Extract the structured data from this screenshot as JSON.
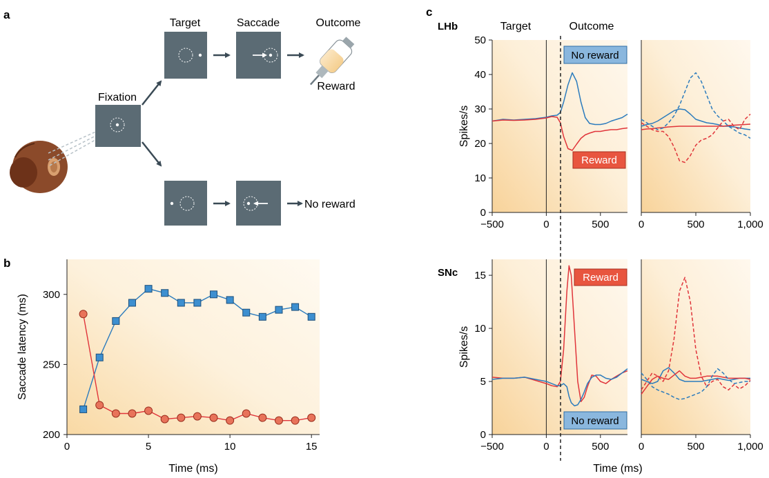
{
  "panel_labels": {
    "a": "a",
    "b": "b",
    "c": "c"
  },
  "diagram": {
    "fixation_label": "Fixation",
    "target_label": "Target",
    "saccade_label": "Saccade",
    "outcome_label": "Outcome",
    "reward_label": "Reward",
    "no_reward_label": "No reward"
  },
  "chart_b": {
    "ylabel": "Saccade latency (ms)",
    "xlabel": "Time (ms)",
    "xticks": [
      "0",
      "5",
      "10",
      "15"
    ],
    "yticks": [
      "200",
      "250",
      "300"
    ]
  },
  "panel_c": {
    "header_target": "Target",
    "header_outcome": "Outcome",
    "row_lhb": "LHb",
    "row_snc": "SNc",
    "ylabel": "Spikes/s",
    "xlabel": "Time (ms)",
    "left_xticks": [
      "−500",
      "0",
      "500"
    ],
    "right_xticks": [
      "0",
      "500",
      "1,000"
    ],
    "lhb_yticks": [
      "0",
      "10",
      "20",
      "30",
      "40",
      "50"
    ],
    "snc_yticks": [
      "0",
      "5",
      "10",
      "15"
    ],
    "lhb_no_reward": "No reward",
    "lhb_reward": "Reward",
    "snc_reward": "Reward",
    "snc_no_reward": "No reward"
  },
  "colors": {
    "blue": "#2b7bbd",
    "red": "#e0343a",
    "blue_marker": "#3d8fd0",
    "red_marker": "#e8735a",
    "screen": "#5b6b74",
    "blue_box": "#8ab7de",
    "red_box": "#e8553f"
  },
  "chart_data": [
    {
      "type": "line",
      "xlabel": "Time (ms)",
      "ylabel": "Saccade latency (ms)",
      "xlim": [
        0,
        15.5
      ],
      "ylim": [
        200,
        325
      ],
      "x": [
        1,
        2,
        3,
        4,
        5,
        6,
        7,
        8,
        9,
        10,
        11,
        12,
        13,
        14,
        15
      ],
      "series": [
        {
          "values": [
            218,
            255,
            281,
            294,
            304,
            301,
            294,
            294,
            300,
            296,
            287,
            284,
            289,
            291,
            284
          ]
        },
        {
          "values": [
            286,
            221,
            215,
            215,
            217,
            211,
            212,
            213,
            212,
            210,
            215,
            212,
            210,
            210,
            212
          ]
        }
      ]
    },
    {
      "type": "line",
      "title": "LHb",
      "ylabel": "Spikes/s",
      "xlim": [
        -500,
        750
      ],
      "ylim": [
        0,
        50
      ],
      "series": [
        {
          "name": "No reward",
          "x": [
            -500,
            -400,
            -300,
            -200,
            -100,
            0,
            50,
            100,
            130,
            160,
            200,
            240,
            280,
            320,
            360,
            400,
            450,
            500,
            550,
            600,
            650,
            700,
            750
          ],
          "values": [
            26.5,
            27,
            26.8,
            27,
            27.2,
            27.6,
            28,
            28.2,
            29,
            32,
            37,
            40.5,
            38,
            32,
            27.5,
            25.8,
            25.5,
            25.5,
            25.8,
            26.5,
            27,
            27.5,
            28.5
          ]
        },
        {
          "name": "Reward",
          "x": [
            -500,
            -400,
            -300,
            -200,
            -100,
            0,
            50,
            100,
            130,
            160,
            200,
            240,
            280,
            320,
            360,
            400,
            450,
            500,
            550,
            600,
            650,
            700,
            750
          ],
          "values": [
            26.5,
            26.8,
            26.7,
            26.8,
            27,
            27.4,
            27.8,
            27.6,
            26,
            22,
            18.5,
            18,
            19.8,
            21.5,
            22.5,
            23,
            23.5,
            23.5,
            23.8,
            24,
            24,
            24.3,
            24.5
          ]
        }
      ]
    },
    {
      "type": "line",
      "ylabel": "Spikes/s",
      "xlim": [
        0,
        1000
      ],
      "ylim": [
        0,
        50
      ],
      "series": [
        {
          "x": [
            0,
            50,
            100,
            150,
            200,
            250,
            300,
            350,
            400,
            450,
            500,
            550,
            600,
            650,
            700,
            750,
            800,
            850,
            900,
            950,
            1000
          ],
          "values": [
            25,
            25.5,
            25.8,
            26.5,
            27.5,
            28.5,
            29.5,
            30,
            29.8,
            28.5,
            27,
            26.5,
            26,
            25.8,
            25.5,
            25,
            25,
            24.8,
            24.5,
            24.2,
            24
          ]
        },
        {
          "x": [
            0,
            50,
            100,
            150,
            200,
            250,
            300,
            350,
            400,
            450,
            500,
            550,
            600,
            650,
            700,
            750,
            800,
            850,
            900,
            950,
            1000
          ],
          "values": [
            24,
            24.2,
            24.3,
            24.5,
            24.6,
            24.8,
            24.9,
            25,
            25,
            25,
            25,
            25,
            25,
            25,
            25,
            25,
            25.2,
            25.3,
            25.4,
            25.5,
            25.6
          ]
        },
        {
          "x": [
            0,
            50,
            100,
            150,
            200,
            250,
            300,
            350,
            400,
            450,
            500,
            550,
            600,
            650,
            700,
            750,
            800,
            850,
            900,
            950,
            1000
          ],
          "values": [
            27,
            26,
            25,
            24,
            24.5,
            26,
            28,
            31,
            35,
            39,
            40.5,
            38,
            34,
            30,
            28,
            26.5,
            25,
            24,
            23,
            22.5,
            21.5
          ]
        },
        {
          "x": [
            0,
            50,
            100,
            150,
            200,
            250,
            300,
            350,
            400,
            450,
            500,
            550,
            600,
            650,
            700,
            750,
            800,
            850,
            900,
            950,
            1000
          ],
          "values": [
            26,
            25,
            24,
            23.5,
            23.5,
            22,
            19,
            15,
            14.5,
            16.5,
            19.5,
            21,
            21.5,
            22.5,
            24.5,
            26.5,
            27,
            25,
            24,
            27,
            28.5
          ]
        }
      ]
    },
    {
      "type": "line",
      "title": "SNc",
      "xlabel": "Time (ms)",
      "ylabel": "Spikes/s",
      "xlim": [
        -500,
        750
      ],
      "ylim": [
        0,
        16.5
      ],
      "series": [
        {
          "name": "Reward",
          "x": [
            -500,
            -400,
            -300,
            -200,
            -100,
            0,
            50,
            100,
            130,
            160,
            190,
            210,
            230,
            260,
            290,
            320,
            350,
            380,
            420,
            460,
            500,
            550,
            600,
            650,
            700,
            750
          ],
          "values": [
            5.4,
            5.3,
            5.3,
            5.4,
            5.1,
            4.8,
            4.6,
            4.5,
            5,
            8,
            13.5,
            15.9,
            15,
            10,
            5,
            3.1,
            3.5,
            4.5,
            5.6,
            5.5,
            5,
            4.8,
            5.2,
            5.5,
            5.8,
            6
          ]
        },
        {
          "name": "No reward",
          "x": [
            -500,
            -400,
            -300,
            -200,
            -100,
            0,
            50,
            100,
            130,
            160,
            190,
            210,
            230,
            260,
            290,
            320,
            350,
            380,
            420,
            460,
            500,
            550,
            600,
            650,
            700,
            750
          ],
          "values": [
            5.2,
            5.3,
            5.3,
            5.4,
            5.2,
            5,
            4.8,
            4.6,
            4.6,
            4.8,
            4.5,
            3.6,
            3,
            2.7,
            2.8,
            3.3,
            4,
            4.8,
            5.4,
            5.6,
            5.6,
            5.3,
            5.2,
            5.4,
            5.8,
            6.2
          ]
        }
      ]
    },
    {
      "type": "line",
      "xlabel": "Time (ms)",
      "xlim": [
        0,
        1000
      ],
      "ylim": [
        0,
        16.5
      ],
      "series": [
        {
          "x": [
            0,
            50,
            100,
            150,
            200,
            250,
            300,
            350,
            400,
            450,
            500,
            550,
            600,
            650,
            700,
            750,
            800,
            850,
            900,
            950,
            1000
          ],
          "values": [
            5.2,
            5,
            4.8,
            5,
            6,
            6.3,
            5.8,
            5.2,
            5,
            5,
            5,
            5,
            5.1,
            5.2,
            5.3,
            5.2,
            5.1,
            5.2,
            5.3,
            5.3,
            5.3
          ]
        },
        {
          "x": [
            0,
            50,
            100,
            150,
            200,
            250,
            300,
            350,
            400,
            450,
            500,
            550,
            600,
            650,
            700,
            750,
            800,
            850,
            900,
            950,
            1000
          ],
          "values": [
            3.8,
            4.5,
            5.2,
            5.5,
            5.3,
            5.2,
            5.6,
            6,
            5.5,
            5.3,
            5.3,
            5.4,
            5.5,
            5.5,
            5.5,
            5.4,
            5.3,
            5.3,
            5.3,
            5.3,
            5.2
          ]
        },
        {
          "x": [
            0,
            50,
            100,
            150,
            200,
            250,
            300,
            350,
            400,
            450,
            500,
            550,
            600,
            650,
            700,
            750,
            800,
            850,
            900,
            950,
            1000
          ],
          "values": [
            4.2,
            5,
            5.8,
            5.5,
            5,
            6,
            9,
            13.5,
            14.8,
            12.5,
            8,
            5.5,
            4.5,
            5,
            5.2,
            4.5,
            4.2,
            4.7,
            4.3,
            4.6,
            5.1
          ]
        },
        {
          "x": [
            0,
            50,
            100,
            150,
            200,
            250,
            300,
            350,
            400,
            450,
            500,
            550,
            600,
            650,
            700,
            750,
            800,
            850,
            900,
            950,
            1000
          ],
          "values": [
            5.8,
            5.2,
            4.5,
            4.2,
            4,
            3.8,
            3.5,
            3.3,
            3.4,
            3.6,
            3.8,
            4,
            4.5,
            5.5,
            6.2,
            5.8,
            5.2,
            4.8,
            4.9,
            5,
            5
          ]
        }
      ]
    }
  ]
}
